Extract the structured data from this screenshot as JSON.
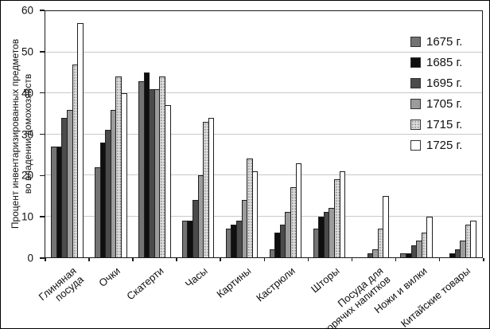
{
  "y_axis": {
    "title_line1": "Процент инвентаризированных предметов",
    "title_line2": "во владении домохозяйств"
  },
  "chart_data": {
    "type": "bar",
    "title": "",
    "xlabel": "",
    "ylabel": "Процент инвентаризированных предметов во владении домохозяйств",
    "ylim": [
      0,
      60
    ],
    "yticks": [
      0,
      10,
      20,
      30,
      40,
      50,
      60
    ],
    "grid": "horizontal",
    "legend_position": "top-right",
    "gridline_color": "#c9c9c9",
    "bar_border_color": "#1f1f1f",
    "categories": [
      "Глиняная посуда",
      "Очки",
      "Скатерти",
      "Часы",
      "Картины",
      "Кастрюли",
      "Шторы",
      "Посуда для\nгорячих напитков",
      "Ножи и вилки",
      "Китайские товары"
    ],
    "series": [
      {
        "name": "1675 г.",
        "color": "#737373",
        "pattern": "solid",
        "values": [
          27,
          22,
          43,
          9,
          7,
          2,
          7,
          0,
          1,
          0
        ]
      },
      {
        "name": "1685 г.",
        "color": "#0f0f0f",
        "pattern": "solid",
        "values": [
          27,
          28,
          45,
          9,
          8,
          6,
          10,
          0,
          1,
          1
        ]
      },
      {
        "name": "1695 г.",
        "color": "#4b4b4b",
        "pattern": "solid",
        "values": [
          34,
          31,
          41,
          14,
          9,
          8,
          11,
          1,
          3,
          2
        ]
      },
      {
        "name": "1705 г.",
        "color": "#9c9c9c",
        "pattern": "solid",
        "values": [
          36,
          36,
          41,
          20,
          14,
          11,
          12,
          2,
          4,
          4
        ]
      },
      {
        "name": "1715 г.",
        "color": "#dcdcdc",
        "pattern": "dots",
        "values": [
          47,
          44,
          44,
          33,
          24,
          17,
          19,
          7,
          6,
          8
        ]
      },
      {
        "name": "1725 г.",
        "color": "#ffffff",
        "pattern": "solid",
        "values": [
          57,
          40,
          37,
          34,
          21,
          23,
          21,
          15,
          10,
          9
        ]
      }
    ]
  }
}
